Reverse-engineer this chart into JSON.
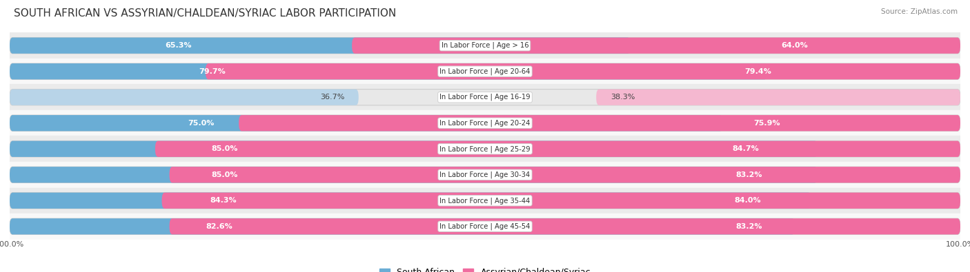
{
  "title": "SOUTH AFRICAN VS ASSYRIAN/CHALDEAN/SYRIAC LABOR PARTICIPATION",
  "source": "Source: ZipAtlas.com",
  "categories": [
    "In Labor Force | Age > 16",
    "In Labor Force | Age 20-64",
    "In Labor Force | Age 16-19",
    "In Labor Force | Age 20-24",
    "In Labor Force | Age 25-29",
    "In Labor Force | Age 30-34",
    "In Labor Force | Age 35-44",
    "In Labor Force | Age 45-54"
  ],
  "south_african": [
    65.3,
    79.7,
    36.7,
    75.0,
    85.0,
    85.0,
    84.3,
    82.6
  ],
  "assyrian": [
    64.0,
    79.4,
    38.3,
    75.9,
    84.7,
    83.2,
    84.0,
    83.2
  ],
  "blue_color": "#6aadd5",
  "blue_color_light": "#b8d4e8",
  "pink_color": "#f06ca0",
  "pink_color_light": "#f5b8d0",
  "row_bg_even": "#ebebeb",
  "row_bg_odd": "#f8f8f8",
  "container_bg": "#e8e8e8",
  "max_val": 100.0,
  "label_fontsize": 8.0,
  "title_fontsize": 11,
  "source_fontsize": 7.5,
  "legend_fontsize": 9,
  "cat_label_fontsize": 7.2,
  "bar_height": 0.62,
  "legend_label_south": "South African",
  "legend_label_assyrian": "Assyrian/Chaldean/Syriac"
}
